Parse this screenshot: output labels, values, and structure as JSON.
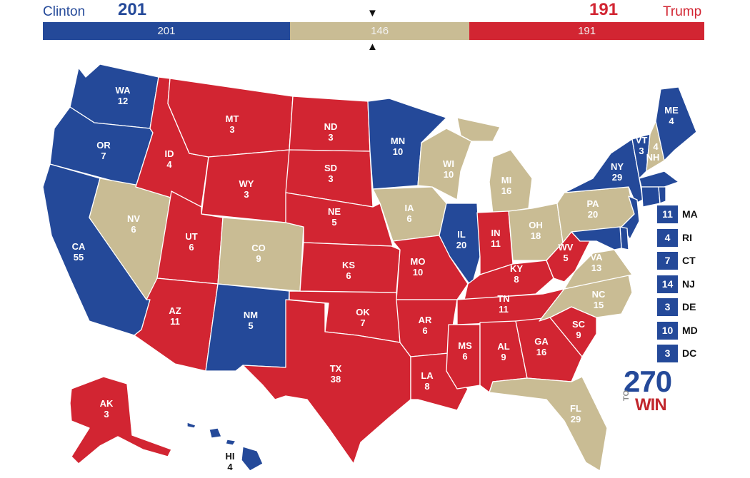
{
  "header": {
    "clinton": {
      "name": "Clinton",
      "votes": "201",
      "color": "#244999"
    },
    "trump": {
      "name": "Trump",
      "votes": "191",
      "color": "#d22532"
    },
    "bar": {
      "dem": "201",
      "tossup": "146",
      "rep": "191",
      "dem_value": 201,
      "tossup_value": 146,
      "rep_value": 191,
      "tossup_color": "#c9bc94"
    }
  },
  "markers": {
    "top": "▼",
    "bottom": "▲"
  },
  "states": [
    {
      "abbr": "WA",
      "ev": "12",
      "party": "dem"
    },
    {
      "abbr": "OR",
      "ev": "7",
      "party": "dem"
    },
    {
      "abbr": "CA",
      "ev": "55",
      "party": "dem"
    },
    {
      "abbr": "NV",
      "ev": "6",
      "party": "tossup"
    },
    {
      "abbr": "ID",
      "ev": "4",
      "party": "rep"
    },
    {
      "abbr": "MT",
      "ev": "3",
      "party": "rep"
    },
    {
      "abbr": "WY",
      "ev": "3",
      "party": "rep"
    },
    {
      "abbr": "UT",
      "ev": "6",
      "party": "rep"
    },
    {
      "abbr": "AZ",
      "ev": "11",
      "party": "rep"
    },
    {
      "abbr": "CO",
      "ev": "9",
      "party": "tossup"
    },
    {
      "abbr": "NM",
      "ev": "5",
      "party": "dem"
    },
    {
      "abbr": "ND",
      "ev": "3",
      "party": "rep"
    },
    {
      "abbr": "SD",
      "ev": "3",
      "party": "rep"
    },
    {
      "abbr": "NE",
      "ev": "5",
      "party": "rep"
    },
    {
      "abbr": "KS",
      "ev": "6",
      "party": "rep"
    },
    {
      "abbr": "OK",
      "ev": "7",
      "party": "rep"
    },
    {
      "abbr": "TX",
      "ev": "38",
      "party": "rep"
    },
    {
      "abbr": "MN",
      "ev": "10",
      "party": "dem"
    },
    {
      "abbr": "IA",
      "ev": "6",
      "party": "tossup"
    },
    {
      "abbr": "MO",
      "ev": "10",
      "party": "rep"
    },
    {
      "abbr": "AR",
      "ev": "6",
      "party": "rep"
    },
    {
      "abbr": "LA",
      "ev": "8",
      "party": "rep"
    },
    {
      "abbr": "WI",
      "ev": "10",
      "party": "tossup"
    },
    {
      "abbr": "IL",
      "ev": "20",
      "party": "dem"
    },
    {
      "abbr": "MI",
      "ev": "16",
      "party": "tossup"
    },
    {
      "abbr": "IN",
      "ev": "11",
      "party": "rep"
    },
    {
      "abbr": "OH",
      "ev": "18",
      "party": "tossup"
    },
    {
      "abbr": "KY",
      "ev": "8",
      "party": "rep"
    },
    {
      "abbr": "TN",
      "ev": "11",
      "party": "rep"
    },
    {
      "abbr": "MS",
      "ev": "6",
      "party": "rep"
    },
    {
      "abbr": "AL",
      "ev": "9",
      "party": "rep"
    },
    {
      "abbr": "GA",
      "ev": "16",
      "party": "rep"
    },
    {
      "abbr": "FL",
      "ev": "29",
      "party": "tossup"
    },
    {
      "abbr": "SC",
      "ev": "9",
      "party": "rep"
    },
    {
      "abbr": "NC",
      "ev": "15",
      "party": "tossup"
    },
    {
      "abbr": "VA",
      "ev": "13",
      "party": "tossup"
    },
    {
      "abbr": "WV",
      "ev": "5",
      "party": "rep"
    },
    {
      "abbr": "PA",
      "ev": "20",
      "party": "tossup"
    },
    {
      "abbr": "NY",
      "ev": "29",
      "party": "dem"
    },
    {
      "abbr": "VT",
      "ev": "3",
      "party": "dem"
    },
    {
      "abbr": "NH",
      "ev": "4",
      "party": "tossup"
    },
    {
      "abbr": "ME",
      "ev": "4",
      "party": "dem"
    },
    {
      "abbr": "AK",
      "ev": "3",
      "party": "rep"
    },
    {
      "abbr": "HI",
      "ev": "4",
      "party": "dem"
    }
  ],
  "small_states": [
    {
      "ev": "11",
      "abbr": "MA"
    },
    {
      "ev": "4",
      "abbr": "RI"
    },
    {
      "ev": "7",
      "abbr": "CT"
    },
    {
      "ev": "14",
      "abbr": "NJ"
    },
    {
      "ev": "3",
      "abbr": "DE"
    },
    {
      "ev": "10",
      "abbr": "MD"
    },
    {
      "ev": "3",
      "abbr": "DC"
    }
  ],
  "logo": {
    "num": "270",
    "to": "TO",
    "win": "WIN"
  },
  "colors": {
    "dem": "#244999",
    "rep": "#d22532",
    "tossup": "#c9bc94"
  }
}
